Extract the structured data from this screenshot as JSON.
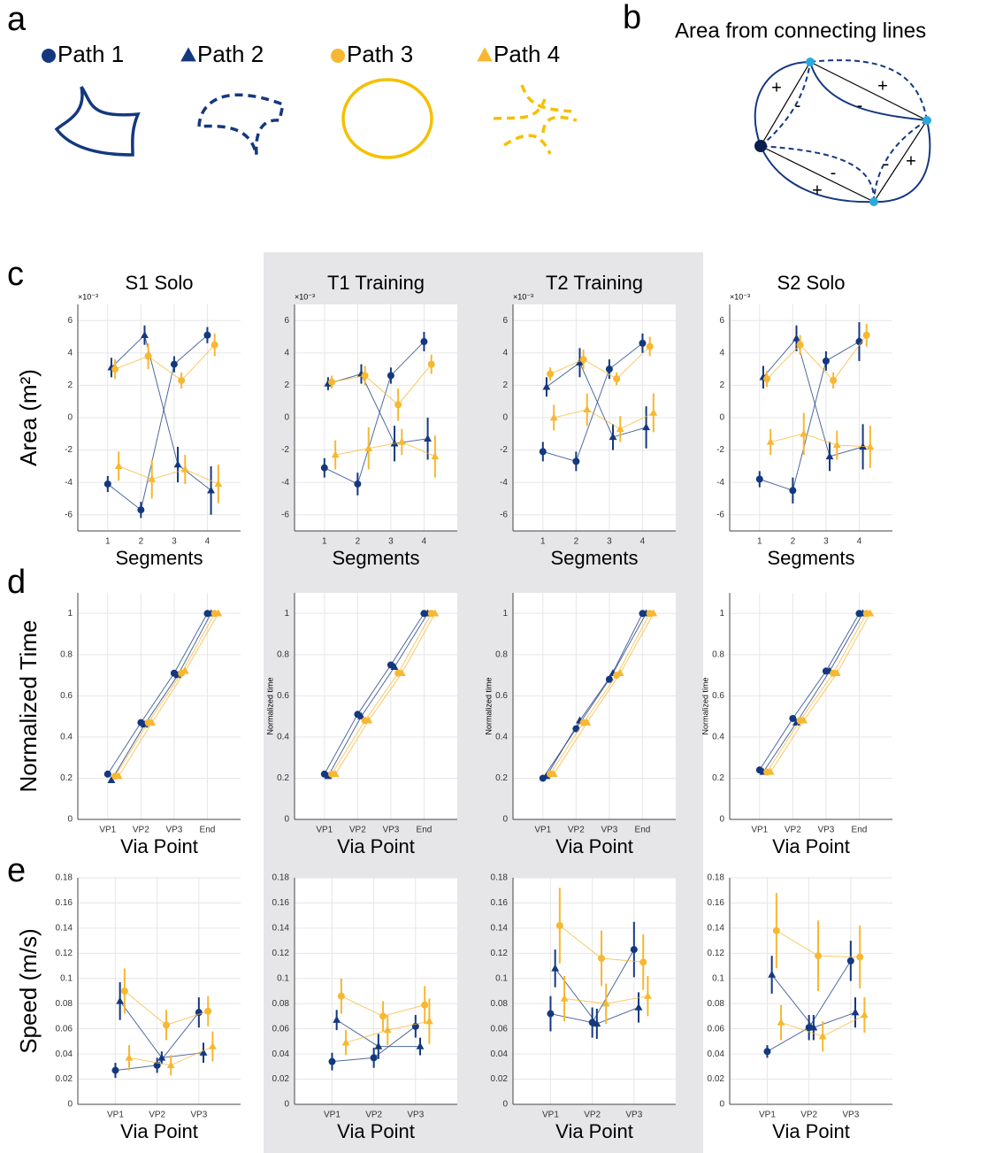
{
  "panel_labels": [
    "a",
    "b",
    "c",
    "d",
    "e"
  ],
  "legend": [
    {
      "label": "Path 1",
      "color": "#14387f",
      "marker": "circle"
    },
    {
      "label": "Path 2",
      "color": "#14387f",
      "marker": "triangle"
    },
    {
      "label": "Path 3",
      "color": "#f7b731",
      "marker": "circle"
    },
    {
      "label": "Path 4",
      "color": "#f7b731",
      "marker": "triangle"
    }
  ],
  "diagram": {
    "title": "Area from connecting lines",
    "signs": [
      "+",
      "-",
      "+",
      "-",
      "-",
      "+",
      "-",
      "+"
    ]
  },
  "chart_data": [
    {
      "type": "line",
      "title": "S1 Solo",
      "ylabel": "Area (m²)",
      "xlabel": "Segments",
      "y_exponent": "×10⁻³",
      "grid": true,
      "x": [
        1,
        2,
        3,
        4
      ],
      "xlim": [
        0.1,
        5
      ],
      "xticks": [
        1,
        2,
        3,
        4
      ],
      "ylim": [
        -7,
        7
      ],
      "yticks": [
        -6,
        -4,
        -2,
        0,
        2,
        4,
        6
      ],
      "series": [
        {
          "values": [
            -4.1,
            -5.7,
            3.3,
            5.1
          ],
          "errors": [
            0.5,
            0.5,
            0.5,
            0.5
          ]
        },
        {
          "values": [
            3.1,
            5.1,
            -2.9,
            -4.5
          ],
          "errors": [
            0.6,
            0.6,
            1.1,
            1.5
          ]
        },
        {
          "values": [
            3.0,
            3.8,
            2.3,
            4.5
          ],
          "errors": [
            0.6,
            0.8,
            0.5,
            0.7
          ]
        },
        {
          "values": [
            -3.0,
            -3.8,
            -3.2,
            -4.1
          ],
          "errors": [
            0.9,
            1.2,
            0.9,
            1.2
          ]
        }
      ]
    },
    {
      "type": "line",
      "title": "T1 Training",
      "xlabel": "Segments",
      "y_exponent": "×10⁻³",
      "grid": true,
      "x": [
        1,
        2,
        3,
        4
      ],
      "xlim": [
        0.1,
        5
      ],
      "xticks": [
        1,
        2,
        3,
        4
      ],
      "ylim": [
        -7,
        7
      ],
      "yticks": [
        -6,
        -4,
        -2,
        0,
        2,
        4,
        6
      ],
      "series": [
        {
          "values": [
            -3.1,
            -4.1,
            2.6,
            4.7
          ],
          "errors": [
            0.6,
            0.7,
            0.5,
            0.6
          ]
        },
        {
          "values": [
            2.1,
            2.7,
            -1.6,
            -1.3
          ],
          "errors": [
            0.4,
            0.6,
            1.1,
            1.3
          ]
        },
        {
          "values": [
            2.2,
            2.6,
            0.8,
            3.3
          ],
          "errors": [
            0.4,
            0.6,
            1.0,
            0.6
          ]
        },
        {
          "values": [
            -2.3,
            -1.9,
            -1.5,
            -2.4
          ],
          "errors": [
            0.9,
            1.3,
            0.8,
            1.3
          ]
        }
      ]
    },
    {
      "type": "line",
      "title": "T2 Training",
      "xlabel": "Segments",
      "y_exponent": "×10⁻³",
      "grid": true,
      "x": [
        1,
        2,
        3,
        4
      ],
      "xlim": [
        0.1,
        5
      ],
      "xticks": [
        1,
        2,
        3,
        4
      ],
      "ylim": [
        -7,
        7
      ],
      "yticks": [
        -6,
        -4,
        -2,
        0,
        2,
        4,
        6
      ],
      "series": [
        {
          "values": [
            -2.1,
            -2.7,
            3.0,
            4.6
          ],
          "errors": [
            0.6,
            0.6,
            0.6,
            0.6
          ]
        },
        {
          "values": [
            1.9,
            3.4,
            -1.2,
            -0.6
          ],
          "errors": [
            0.6,
            0.9,
            0.8,
            1.3
          ]
        },
        {
          "values": [
            2.7,
            3.6,
            2.4,
            4.4
          ],
          "errors": [
            0.4,
            0.6,
            0.4,
            0.6
          ]
        },
        {
          "values": [
            0.0,
            0.5,
            -0.7,
            0.3
          ],
          "errors": [
            0.8,
            1.0,
            0.8,
            1.2
          ]
        }
      ]
    },
    {
      "type": "line",
      "title": "S2 Solo",
      "xlabel": "Segments",
      "y_exponent": "×10⁻³",
      "grid": true,
      "x": [
        1,
        2,
        3,
        4
      ],
      "xlim": [
        0.1,
        5
      ],
      "xticks": [
        1,
        2,
        3,
        4
      ],
      "ylim": [
        -7,
        7
      ],
      "yticks": [
        -6,
        -4,
        -2,
        0,
        2,
        4,
        6
      ],
      "series": [
        {
          "values": [
            -3.8,
            -4.5,
            3.5,
            4.7
          ],
          "errors": [
            0.5,
            0.8,
            0.6,
            1.2
          ]
        },
        {
          "values": [
            2.5,
            4.9,
            -2.4,
            -1.8
          ],
          "errors": [
            0.7,
            0.8,
            0.9,
            1.4
          ]
        },
        {
          "values": [
            2.4,
            4.5,
            2.3,
            5.1
          ],
          "errors": [
            0.5,
            0.6,
            0.5,
            0.7
          ]
        },
        {
          "values": [
            -1.5,
            -1.0,
            -1.7,
            -1.8
          ],
          "errors": [
            0.8,
            1.3,
            0.9,
            1.3
          ]
        }
      ]
    },
    {
      "type": "line",
      "ylabel": "Normalized Time",
      "xlabel": "Via Point",
      "grid": true,
      "categories": [
        "VP1",
        "VP2",
        "VP3",
        "End"
      ],
      "ylim": [
        0,
        1.1
      ],
      "yticks": [
        0,
        0.2,
        0.4,
        0.6,
        0.8,
        1
      ],
      "series": [
        {
          "values": [
            0.22,
            0.47,
            0.71,
            1
          ]
        },
        {
          "values": [
            0.19,
            0.46,
            0.7,
            1
          ]
        },
        {
          "values": [
            0.21,
            0.47,
            0.71,
            1
          ]
        },
        {
          "values": [
            0.21,
            0.47,
            0.72,
            1
          ]
        }
      ]
    },
    {
      "type": "line",
      "ylabel": "Normalized time",
      "xlabel": "Via Point",
      "grid": true,
      "categories": [
        "VP1",
        "VP2",
        "VP3",
        "End"
      ],
      "ylim": [
        0,
        1.1
      ],
      "yticks": [
        0,
        0.2,
        0.4,
        0.6,
        0.8,
        1
      ],
      "series": [
        {
          "values": [
            0.22,
            0.51,
            0.75,
            1
          ]
        },
        {
          "values": [
            0.21,
            0.5,
            0.74,
            1
          ]
        },
        {
          "values": [
            0.22,
            0.48,
            0.71,
            1
          ]
        },
        {
          "values": [
            0.22,
            0.48,
            0.71,
            1
          ]
        }
      ]
    },
    {
      "type": "line",
      "ylabel": "Normalized time",
      "xlabel": "Via Point",
      "grid": true,
      "categories": [
        "VP1",
        "VP2",
        "VP3",
        "End"
      ],
      "ylim": [
        0,
        1.1
      ],
      "yticks": [
        0,
        0.2,
        0.4,
        0.6,
        0.8,
        1
      ],
      "series": [
        {
          "values": [
            0.2,
            0.44,
            0.68,
            1
          ]
        },
        {
          "values": [
            0.21,
            0.48,
            0.71,
            1
          ]
        },
        {
          "values": [
            0.22,
            0.47,
            0.7,
            1
          ]
        },
        {
          "values": [
            0.22,
            0.47,
            0.71,
            1
          ]
        }
      ]
    },
    {
      "type": "line",
      "ylabel": "Normalized time",
      "xlabel": "Via Point",
      "grid": true,
      "categories": [
        "VP1",
        "VP2",
        "VP3",
        "End"
      ],
      "ylim": [
        0,
        1.1
      ],
      "yticks": [
        0,
        0.2,
        0.4,
        0.6,
        0.8,
        1
      ],
      "series": [
        {
          "values": [
            0.24,
            0.49,
            0.72,
            1
          ]
        },
        {
          "values": [
            0.23,
            0.47,
            0.72,
            1
          ]
        },
        {
          "values": [
            0.23,
            0.48,
            0.71,
            1
          ]
        },
        {
          "values": [
            0.23,
            0.48,
            0.71,
            1
          ]
        }
      ]
    },
    {
      "type": "line",
      "ylabel": "Speed (m/s)",
      "xlabel": "Via Point",
      "grid": true,
      "categories": [
        "VP1",
        "VP2",
        "VP3"
      ],
      "ylim": [
        0,
        0.18
      ],
      "yticks": [
        0,
        0.02,
        0.04,
        0.06,
        0.08,
        0.1,
        0.12,
        0.14,
        0.16,
        0.18
      ],
      "series": [
        {
          "values": [
            0.027,
            0.031,
            0.073
          ],
          "errors": [
            0.006,
            0.006,
            0.012
          ]
        },
        {
          "values": [
            0.082,
            0.037,
            0.041
          ],
          "errors": [
            0.015,
            0.005,
            0.008
          ]
        },
        {
          "values": [
            0.09,
            0.063,
            0.074
          ],
          "errors": [
            0.018,
            0.012,
            0.012
          ]
        },
        {
          "values": [
            0.037,
            0.031,
            0.046
          ],
          "errors": [
            0.01,
            0.008,
            0.012
          ]
        }
      ]
    },
    {
      "type": "line",
      "xlabel": "Via Point",
      "grid": true,
      "categories": [
        "VP1",
        "VP2",
        "VP3"
      ],
      "ylim": [
        0,
        0.18
      ],
      "yticks": [
        0,
        0.02,
        0.04,
        0.06,
        0.08,
        0.1,
        0.12,
        0.14,
        0.16,
        0.18
      ],
      "series": [
        {
          "values": [
            0.034,
            0.037,
            0.062
          ],
          "errors": [
            0.007,
            0.008,
            0.009
          ]
        },
        {
          "values": [
            0.067,
            0.046,
            0.046
          ],
          "errors": [
            0.008,
            0.01,
            0.007
          ]
        },
        {
          "values": [
            0.086,
            0.07,
            0.079
          ],
          "errors": [
            0.014,
            0.012,
            0.015
          ]
        },
        {
          "values": [
            0.049,
            0.059,
            0.066
          ],
          "errors": [
            0.01,
            0.012,
            0.018
          ]
        }
      ]
    },
    {
      "type": "line",
      "xlabel": "Via Point",
      "grid": true,
      "categories": [
        "VP1",
        "VP2",
        "VP3"
      ],
      "ylim": [
        0,
        0.18
      ],
      "yticks": [
        0,
        0.02,
        0.04,
        0.06,
        0.08,
        0.1,
        0.12,
        0.14,
        0.16,
        0.18
      ],
      "series": [
        {
          "values": [
            0.072,
            0.065,
            0.123
          ],
          "errors": [
            0.014,
            0.012,
            0.022
          ]
        },
        {
          "values": [
            0.108,
            0.064,
            0.077
          ],
          "errors": [
            0.015,
            0.012,
            0.012
          ]
        },
        {
          "values": [
            0.142,
            0.116,
            0.113
          ],
          "errors": [
            0.03,
            0.022,
            0.022
          ]
        },
        {
          "values": [
            0.084,
            0.08,
            0.086
          ],
          "errors": [
            0.018,
            0.016,
            0.016
          ]
        }
      ]
    },
    {
      "type": "line",
      "xlabel": "Via Point",
      "grid": true,
      "categories": [
        "VP1",
        "VP2",
        "VP3"
      ],
      "ylim": [
        0,
        0.18
      ],
      "yticks": [
        0,
        0.02,
        0.04,
        0.06,
        0.08,
        0.1,
        0.12,
        0.14,
        0.16,
        0.18
      ],
      "series": [
        {
          "values": [
            0.042,
            0.061,
            0.114
          ],
          "errors": [
            0.005,
            0.01,
            0.016
          ]
        },
        {
          "values": [
            0.103,
            0.061,
            0.073
          ],
          "errors": [
            0.015,
            0.01,
            0.012
          ]
        },
        {
          "values": [
            0.138,
            0.118,
            0.117
          ],
          "errors": [
            0.03,
            0.028,
            0.025
          ]
        },
        {
          "values": [
            0.065,
            0.054,
            0.071
          ],
          "errors": [
            0.014,
            0.012,
            0.014
          ]
        }
      ]
    }
  ]
}
